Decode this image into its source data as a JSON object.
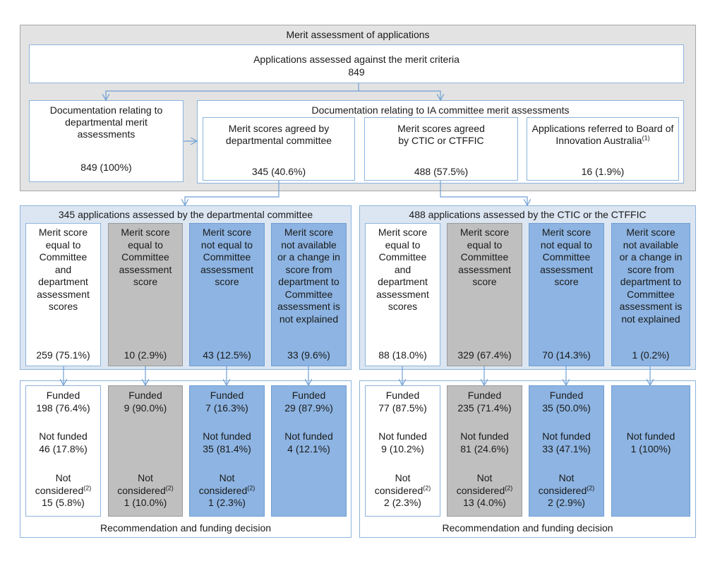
{
  "top": {
    "title": "Merit assessment of applications",
    "assessed_label": "Applications assessed against the merit criteria",
    "assessed_value": "849",
    "doc_dept": {
      "label": "Documentation relating to departmental merit assessments",
      "value": "849 (100%)"
    },
    "doc_ia": {
      "label": "Documentation relating to IA committee merit assessments",
      "boxes": [
        {
          "label": "Merit scores agreed by departmental committee",
          "value": "345 (40.6%)"
        },
        {
          "label": "Merit scores agreed by CTIC or CTFFIC",
          "value": "488 (57.5%)"
        },
        {
          "label": "Applications referred to Board of Innovation Australia",
          "sup": "(1)",
          "value": "16 (1.9%)"
        }
      ]
    }
  },
  "dept_panel": {
    "title": "345 applications assessed by the departmental committee",
    "columns": [
      {
        "label": "Merit score\nequal to\nCommittee\nand\ndepartment\nassessment\nscores",
        "value": "259 (75.1%)"
      },
      {
        "label": "Merit score\nequal to\nCommittee\nassessment\nscore",
        "value": "10 (2.9%)"
      },
      {
        "label": "Merit score\nnot equal to\nCommittee\nassessment\nscore",
        "value": "43 (12.5%)"
      },
      {
        "label": "Merit score\nnot available\nor a change in\nscore from\ndepartment to\nCommittee\nassessment is\nnot explained",
        "value": "33 (9.6%)"
      }
    ],
    "outcomes": [
      {
        "funded": "Funded\n198 (76.4%)",
        "not_funded": "Not funded\n46 (17.8%)",
        "nc_label": "Not\nconsidered",
        "nc_value": "15 (5.8%)"
      },
      {
        "funded": "Funded\n9 (90.0%)",
        "not_funded": "",
        "nc_label": "Not\nconsidered",
        "nc_value": "1 (10.0%)"
      },
      {
        "funded": "Funded\n7 (16.3%)",
        "not_funded": "Not funded\n35 (81.4%)",
        "nc_label": "Not\nconsidered",
        "nc_value": "1 (2.3%)"
      },
      {
        "funded": "Funded\n29 (87.9%)",
        "not_funded": "Not funded\n4 (12.1%)",
        "nc_label": "",
        "nc_value": ""
      }
    ],
    "footer": "Recommendation and funding decision"
  },
  "ctic_panel": {
    "title": "488 applications assessed by the CTIC or the CTFFIC",
    "columns": [
      {
        "label": "Merit score\nequal to\nCommittee\nand\ndepartment\nassessment\nscores",
        "value": "88 (18.0%)"
      },
      {
        "label": "Merit score\nequal to\nCommittee\nassessment\nscore",
        "value": "329 (67.4%)"
      },
      {
        "label": "Merit score\nnot equal to\nCommittee\nassessment\nscore",
        "value": "70 (14.3%)"
      },
      {
        "label": "Merit score\nnot available\nor a change in\nscore from\ndepartment to\nCommittee\nassessment is\nnot explained",
        "value": "1 (0.2%)"
      }
    ],
    "outcomes": [
      {
        "funded": "Funded\n77 (87.5%)",
        "not_funded": "Not funded\n9 (10.2%)",
        "nc_label": "Not\nconsidered",
        "nc_value": "2 (2.3%)"
      },
      {
        "funded": "Funded\n235 (71.4%)",
        "not_funded": "Not funded\n81 (24.6%)",
        "nc_label": "Not\nconsidered",
        "nc_value": "13 (4.0%)"
      },
      {
        "funded": "Funded\n35 (50.0%)",
        "not_funded": "Not funded\n33 (47.1%)",
        "nc_label": "Not\nconsidered",
        "nc_value": "2 (2.9%)"
      },
      {
        "funded": "",
        "not_funded": "Not funded\n1 (100%)",
        "nc_label": "",
        "nc_value": ""
      }
    ],
    "footer": "Recommendation and funding decision"
  },
  "footnote_marker": "(2)",
  "colors": {
    "grey_box": "#bfbfbf",
    "blue_box": "#8db4e2",
    "panel_blue": "#dce6f2",
    "border": "#8cb4dc",
    "outer_grey": "#e3e3e3"
  }
}
